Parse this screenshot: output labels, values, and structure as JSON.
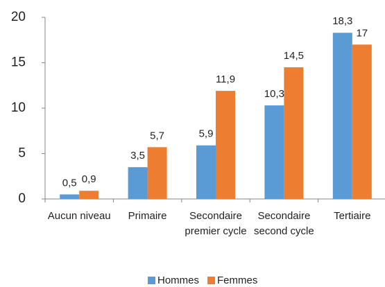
{
  "chart_data": {
    "type": "bar",
    "categories": [
      "Aucun niveau",
      "Primaire",
      "Secondaire premier cycle",
      "Secondaire second cycle",
      "Tertiaire"
    ],
    "series": [
      {
        "name": "Hommes",
        "color": "#5b9bd5",
        "values": [
          0.5,
          3.5,
          5.9,
          10.3,
          18.3
        ],
        "value_labels": [
          "0,5",
          "3,5",
          "5,9",
          "10,3",
          "18,3"
        ]
      },
      {
        "name": "Femmes",
        "color": "#ed7d31",
        "values": [
          0.9,
          5.7,
          11.9,
          14.5,
          17
        ],
        "value_labels": [
          "0,9",
          "5,7",
          "11,9",
          "14,5",
          "17"
        ]
      }
    ],
    "ylim": [
      0,
      20
    ],
    "yticks": [
      0,
      5,
      10,
      15,
      20
    ],
    "grid": false,
    "legend": "bottom"
  }
}
